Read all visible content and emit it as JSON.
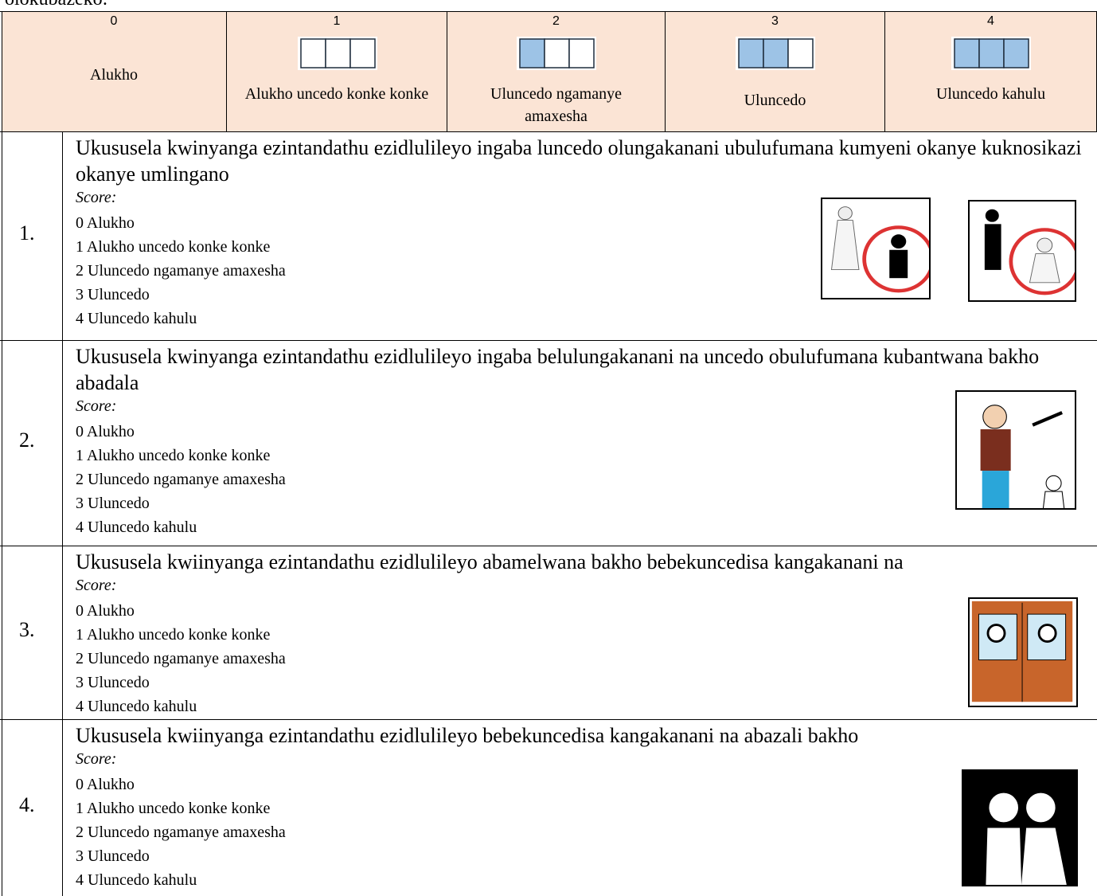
{
  "intro": "olokubazeko:",
  "scale": [
    {
      "number": "0",
      "label": "Alukho"
    },
    {
      "number": "1",
      "label": "Alukho uncedo konke konke"
    },
    {
      "number": "2",
      "label": "Uluncedo ngamanye amaxesha"
    },
    {
      "number": "3",
      "label": "Uluncedo"
    },
    {
      "number": "4",
      "label": "Uluncedo kahulu"
    }
  ],
  "items": [
    {
      "number": "1.",
      "question": "Ukususela kwinyanga ezintandathu ezidlulileyo ingaba luncedo olungakanani ubulufumana kumyeni okanye kuknosikazi okanye umlingano",
      "score_label": "Score:",
      "options": [
        "0 Alukho",
        "1 Alukho uncedo konke konke",
        "2 Uluncedo ngamanye amaxesha",
        "3 Uluncedo",
        "4 Uluncedo kahulu"
      ]
    },
    {
      "number": "2.",
      "question": "Ukususela kwinyanga ezintandathu ezidlulileyo ingaba belulungakanani na uncedo obulufumana kubantwana bakho abadala",
      "score_label": "Score:",
      "options": [
        "0 Alukho",
        "1 Alukho uncedo konke konke",
        "2 Uluncedo ngamanye amaxesha",
        "3 Uluncedo",
        "4 Uluncedo kahulu"
      ]
    },
    {
      "number": "3.",
      "question": "Ukususela kwiinyanga ezintandathu ezidlulileyo abamelwana bakho bebekuncedisa kangakanani na",
      "score_label": "Score:",
      "options": [
        "0 Alukho",
        "1 Alukho uncedo konke konke",
        "2 Uluncedo ngamanye amaxesha",
        "3 Uluncedo",
        "4 Uluncedo kahulu"
      ]
    },
    {
      "number": "4.",
      "question": "Ukususela kwiinyanga ezintandathu ezidlulileyo bebekuncedisa kangakanani na abazali bakho",
      "score_label": "Score:",
      "options": [
        "0 Alukho",
        "1 Alukho uncedo konke konke",
        "2 Uluncedo ngamanye amaxesha",
        "3 Uluncedo",
        "4 Uluncedo kahulu"
      ]
    }
  ]
}
